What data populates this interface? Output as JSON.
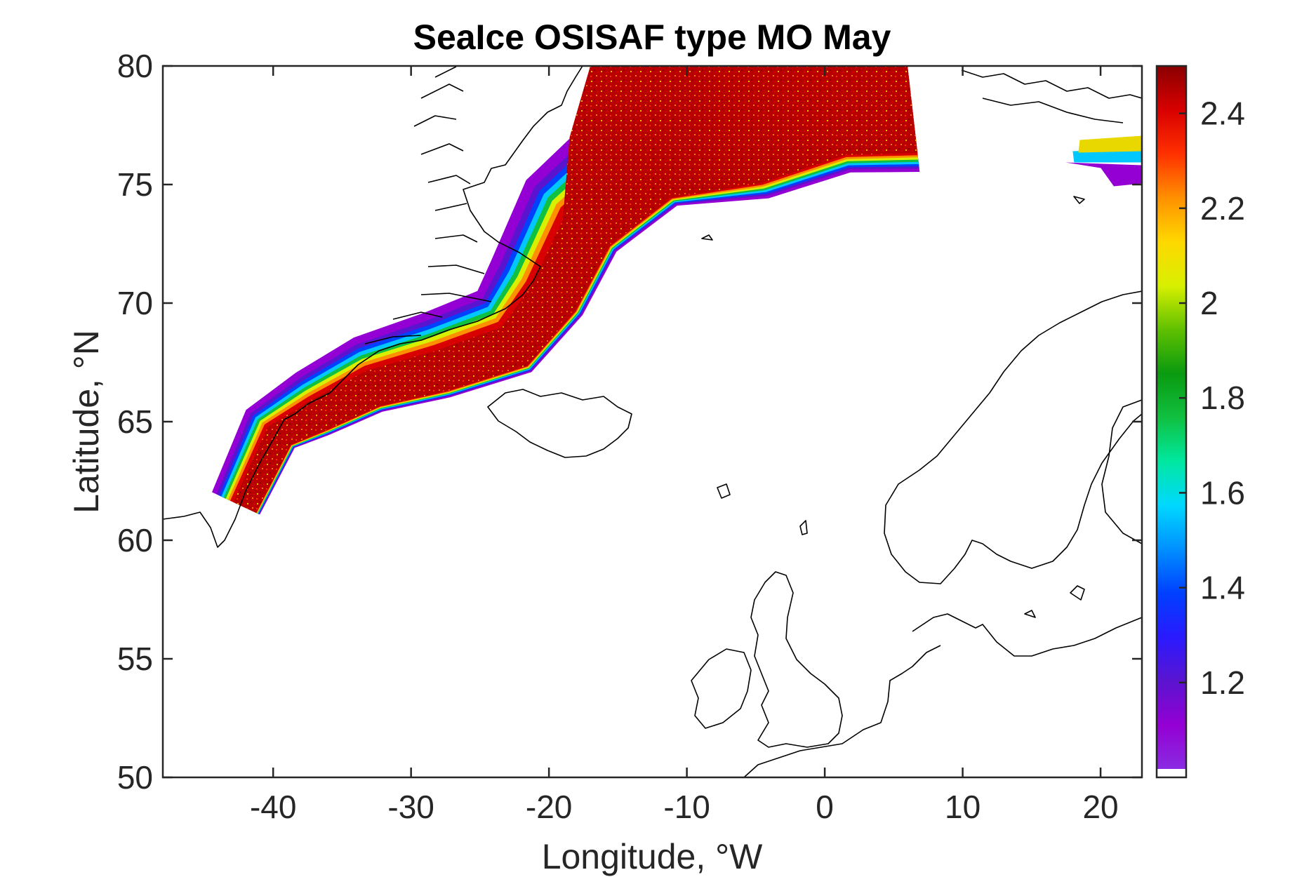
{
  "chart_data": {
    "type": "heatmap",
    "title": "SeaIce OSISAF type MO May",
    "xlabel": "Longitude, °W",
    "ylabel": "Latitude, °N",
    "xlim": [
      -48,
      23
    ],
    "ylim": [
      50,
      80
    ],
    "x_ticks": [
      -40,
      -30,
      -20,
      -10,
      0,
      10,
      20
    ],
    "x_tick_labels": [
      "-40",
      "-30",
      "-20",
      "-10",
      "0",
      "10",
      "20"
    ],
    "y_ticks": [
      50,
      55,
      60,
      65,
      70,
      75,
      80
    ],
    "y_tick_labels": [
      "50",
      "55",
      "60",
      "65",
      "70",
      "75",
      "80"
    ],
    "colorbar": {
      "range": [
        1.0,
        2.5
      ],
      "ticks": [
        1.2,
        1.4,
        1.6,
        1.8,
        2.0,
        2.2,
        2.4
      ],
      "tick_labels": [
        "1.2",
        "1.4",
        "1.6",
        "1.8",
        "2",
        "2.2",
        "2.4"
      ],
      "colormap": [
        "#ffffff",
        "#8a2be2",
        "#9400d3",
        "#5a14d0",
        "#2a1aff",
        "#0040ff",
        "#0090ff",
        "#00d8ff",
        "#00e8a0",
        "#10c040",
        "#0a9a10",
        "#60c000",
        "#d8f000",
        "#ffd800",
        "#ff9000",
        "#ff3000",
        "#d80000",
        "#8a0000"
      ]
    },
    "ice_band": {
      "centerline": [
        [
          -42.5,
          61.5
        ],
        [
          -40,
          64.6
        ],
        [
          -37,
          65.6
        ],
        [
          -33,
          66.8
        ],
        [
          -28,
          67.6
        ],
        [
          -23,
          68.6
        ],
        [
          -20.5,
          70.5
        ],
        [
          -18,
          73.5
        ],
        [
          -13,
          76
        ],
        [
          -7,
          78
        ],
        [
          0,
          79.6
        ],
        [
          6,
          80
        ]
      ],
      "svalbard_patch": [
        [
          19,
          76.7
        ],
        [
          23,
          76.7
        ]
      ],
      "max_value_region": "East Greenland shelf 73-80°N",
      "value_gradient": "2.5 near coast to ~1.1 at ice edge"
    }
  }
}
